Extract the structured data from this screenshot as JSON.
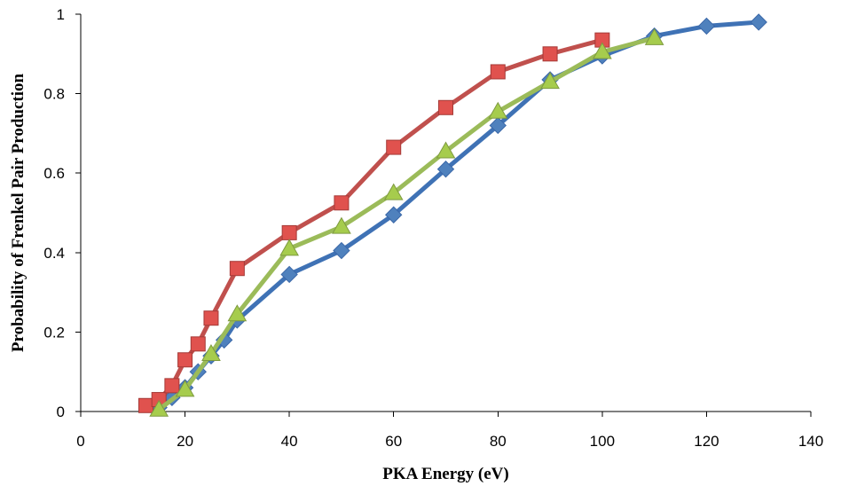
{
  "chart_data": {
    "type": "line",
    "title": "",
    "xlabel": "PKA Energy (eV)",
    "ylabel": "Probability  of Frenkel Pair Production",
    "xlim": [
      0,
      140
    ],
    "ylim": [
      0,
      1
    ],
    "xticks": [
      0,
      20,
      40,
      60,
      80,
      100,
      120,
      140
    ],
    "yticks": [
      0,
      0.2,
      0.4,
      0.6,
      0.8,
      1
    ],
    "ytick_labels": [
      "0",
      "0.2",
      "0.4",
      "0.6",
      "0.8",
      "1"
    ],
    "grid": false,
    "legend": "none",
    "series": [
      {
        "color": "#4f81bd",
        "line_color": "#3f72b5",
        "edge_color": "#3a67a8",
        "marker": "diamond",
        "x": [
          15,
          17.5,
          20,
          22.5,
          25,
          27.5,
          30,
          40,
          50,
          60,
          70,
          80,
          90,
          100,
          110,
          120,
          130
        ],
        "y": [
          0.01,
          0.035,
          0.06,
          0.1,
          0.14,
          0.18,
          0.23,
          0.345,
          0.405,
          0.495,
          0.61,
          0.72,
          0.835,
          0.895,
          0.945,
          0.97,
          0.98
        ]
      },
      {
        "color": "#e0524e",
        "line_color": "#c0504d",
        "edge_color": "#a53a37",
        "marker": "square",
        "x": [
          12.5,
          15,
          17.5,
          20,
          22.5,
          25,
          30,
          40,
          50,
          60,
          70,
          80,
          90,
          100
        ],
        "y": [
          0.015,
          0.03,
          0.065,
          0.13,
          0.17,
          0.235,
          0.36,
          0.45,
          0.525,
          0.665,
          0.765,
          0.855,
          0.9,
          0.935
        ]
      },
      {
        "color": "#a6cc4d",
        "line_color": "#9bbb59",
        "edge_color": "#7e9a40",
        "marker": "triangle",
        "x": [
          15,
          20,
          25,
          30,
          40,
          50,
          60,
          70,
          80,
          90,
          100,
          110
        ],
        "y": [
          0.005,
          0.055,
          0.145,
          0.245,
          0.41,
          0.465,
          0.55,
          0.655,
          0.755,
          0.83,
          0.905,
          0.94
        ]
      }
    ]
  }
}
